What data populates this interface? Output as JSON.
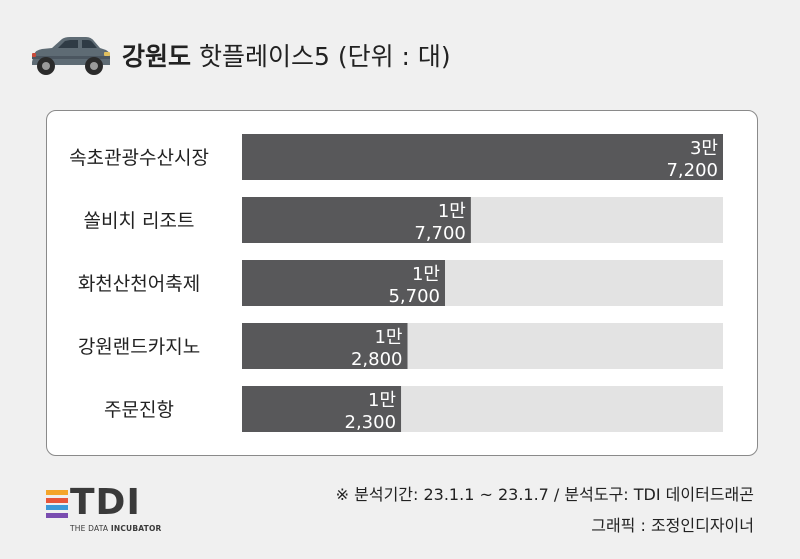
{
  "header": {
    "title_bold": "강원도",
    "title_rest": " 핫플레이스5 (단위 : 대)",
    "icon": "car-icon"
  },
  "chart_data": {
    "type": "bar",
    "orientation": "horizontal",
    "categories": [
      "속초관광수산시장",
      "쏠비치 리조트",
      "화천산천어축제",
      "강원랜드카지노",
      "주문진항"
    ],
    "values": [
      37200,
      17700,
      15700,
      12800,
      12300
    ],
    "value_labels": [
      [
        "3만",
        "7,200"
      ],
      [
        "1만",
        "7,700"
      ],
      [
        "1만",
        "5,700"
      ],
      [
        "1만",
        "2,800"
      ],
      [
        "1만",
        "2,300"
      ]
    ],
    "xlim": [
      0,
      37200
    ],
    "grid": false,
    "legend": "none",
    "colors": {
      "bar": "#58585a",
      "track": "#e3e3e3",
      "value_text": "#ffffff"
    }
  },
  "footer": {
    "source": "※ 분석기간: 23.1.1 ~ 23.1.7 / 분석도구: TDI 데이터드래곤",
    "credit": "그래픽 : 조정인디자이너"
  },
  "logo": {
    "text": "TDI",
    "sub_plain": "THE DATA ",
    "sub_bold": "INCUBATOR",
    "stripe_colors": [
      "#f4a52a",
      "#e8563a",
      "#3d9ad8",
      "#7a4db0"
    ]
  }
}
